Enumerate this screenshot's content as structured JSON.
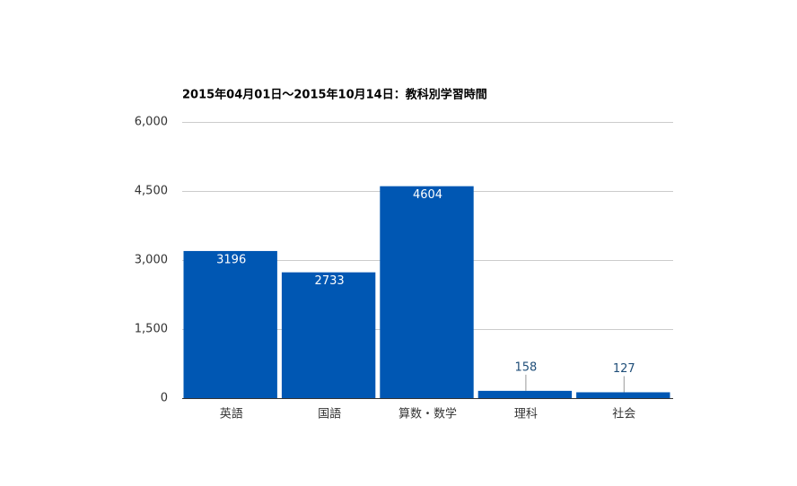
{
  "chart_data": {
    "type": "bar",
    "title": "2015年04月01日～2015年10月14日：教科別学習時間",
    "categories": [
      "英語",
      "国語",
      "算数・数学",
      "理科",
      "社会"
    ],
    "values": [
      3196,
      2733,
      4604,
      158,
      127
    ],
    "color": "#0057b3",
    "ylim": [
      0,
      6000
    ],
    "yticks": [
      0,
      {
        "value": 1500,
        "label": "1,500"
      },
      {
        "value": 3000,
        "label": "3,000"
      },
      {
        "value": 4500,
        "label": "4,500"
      },
      {
        "value": 6000,
        "label": "6,000"
      }
    ],
    "grid": true
  }
}
